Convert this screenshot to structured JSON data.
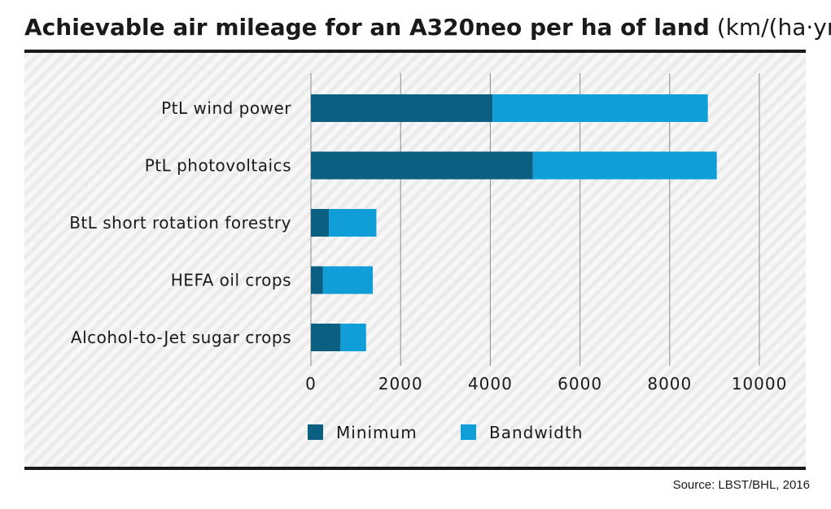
{
  "header": {
    "title_bold": "Achievable air mileage for an A320neo per ha of land",
    "title_unit": "(km/(ha·yr))"
  },
  "footer": {
    "source": "Source: LBST/BHL, 2016"
  },
  "colors": {
    "minimum": "#0b5f80",
    "bandwidth": "#109ed9",
    "grid": "#8c8c8c"
  },
  "chart_data": {
    "type": "bar",
    "orientation": "horizontal",
    "stacked": true,
    "title": "Achievable air mileage for an A320neo per ha of land",
    "unit": "(km/(ha·yr))",
    "categories": [
      "PtL wind power",
      "PtL photovoltaics",
      "BtL short rotation forestry",
      "HEFA oil crops",
      "Alcohol-to-Jet sugar crops"
    ],
    "series": [
      {
        "name": "Minimum",
        "values": [
          4050,
          4950,
          400,
          270,
          660
        ]
      },
      {
        "name": "Bandwidth",
        "values": [
          4800,
          4100,
          1060,
          1110,
          570
        ]
      }
    ],
    "xlim": [
      0,
      10000
    ],
    "xticks": [
      "0",
      "2000",
      "4000",
      "6000",
      "8000",
      "10000"
    ],
    "xlabel": "",
    "ylabel": "",
    "grid": "vertical",
    "legend_position": "bottom"
  }
}
